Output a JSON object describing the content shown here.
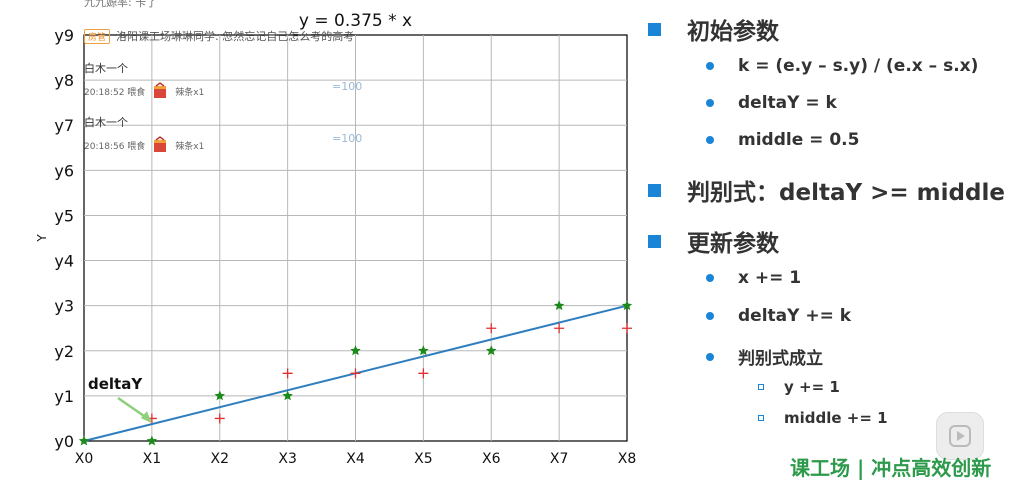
{
  "chart_data": {
    "type": "scatter",
    "title": "y = 0.375 * x",
    "ylabel": "Y",
    "xlabel": "",
    "x_ticks": [
      "X0",
      "X1",
      "X2",
      "X3",
      "X4",
      "X5",
      "X6",
      "X7",
      "X8"
    ],
    "y_ticks": [
      "y0",
      "y1",
      "y2",
      "y3",
      "y4",
      "y5",
      "y6",
      "y7",
      "y8",
      "y9"
    ],
    "xlim": [
      0,
      8
    ],
    "ylim": [
      0,
      9
    ],
    "grid": true,
    "line": {
      "slope": 0.375,
      "color": "#2e7ebf"
    },
    "series": [
      {
        "marker": "star",
        "color": "#1a8a1a",
        "x": [
          0,
          1,
          2,
          3,
          4,
          5,
          6,
          7,
          8
        ],
        "y": [
          0,
          0,
          1,
          1,
          2,
          2,
          2,
          3,
          3
        ]
      },
      {
        "marker": "plus",
        "color": "#e03030",
        "x": [
          1,
          2,
          3,
          4,
          5,
          6,
          7,
          8
        ],
        "y": [
          0.5,
          0.5,
          1.5,
          1.5,
          1.5,
          2.5,
          2.5,
          2.5
        ]
      }
    ],
    "annotation": {
      "text": "deltaY",
      "arrow_to": [
        1,
        0.375
      ]
    }
  },
  "colors": {
    "accent": "#1a84d6",
    "text": "#333333"
  },
  "danmaku": {
    "top_partial": "九九嫄率: 卡了",
    "badge": "房管",
    "badge_message": "洛阳课工场琳琳同学: 忽然忘记自己怎么考的高考",
    "gifts": [
      {
        "user": "白木一个",
        "time": "20:18:52 喂食",
        "gift": "辣条x1",
        "count": "=100"
      },
      {
        "user": "白木一个",
        "time": "20:18:56 喂食",
        "gift": "辣条x1",
        "count": "=100"
      }
    ]
  },
  "slide": {
    "h1": "初始参数",
    "b1": "k = (e.y – s.y) / (e.x – s.x)",
    "b2": "deltaY = k",
    "b3": "middle = 0.5",
    "h2": "判别式：deltaY  >= middle",
    "h3": "更新参数",
    "b4": "x += 1",
    "b5": "deltaY += k",
    "b6": "判别式成立",
    "s1": "y += 1",
    "s2": "middle += 1"
  },
  "watermark": "课工场 | 冲点高效创新",
  "player": {
    "play_icon": "play-icon"
  }
}
